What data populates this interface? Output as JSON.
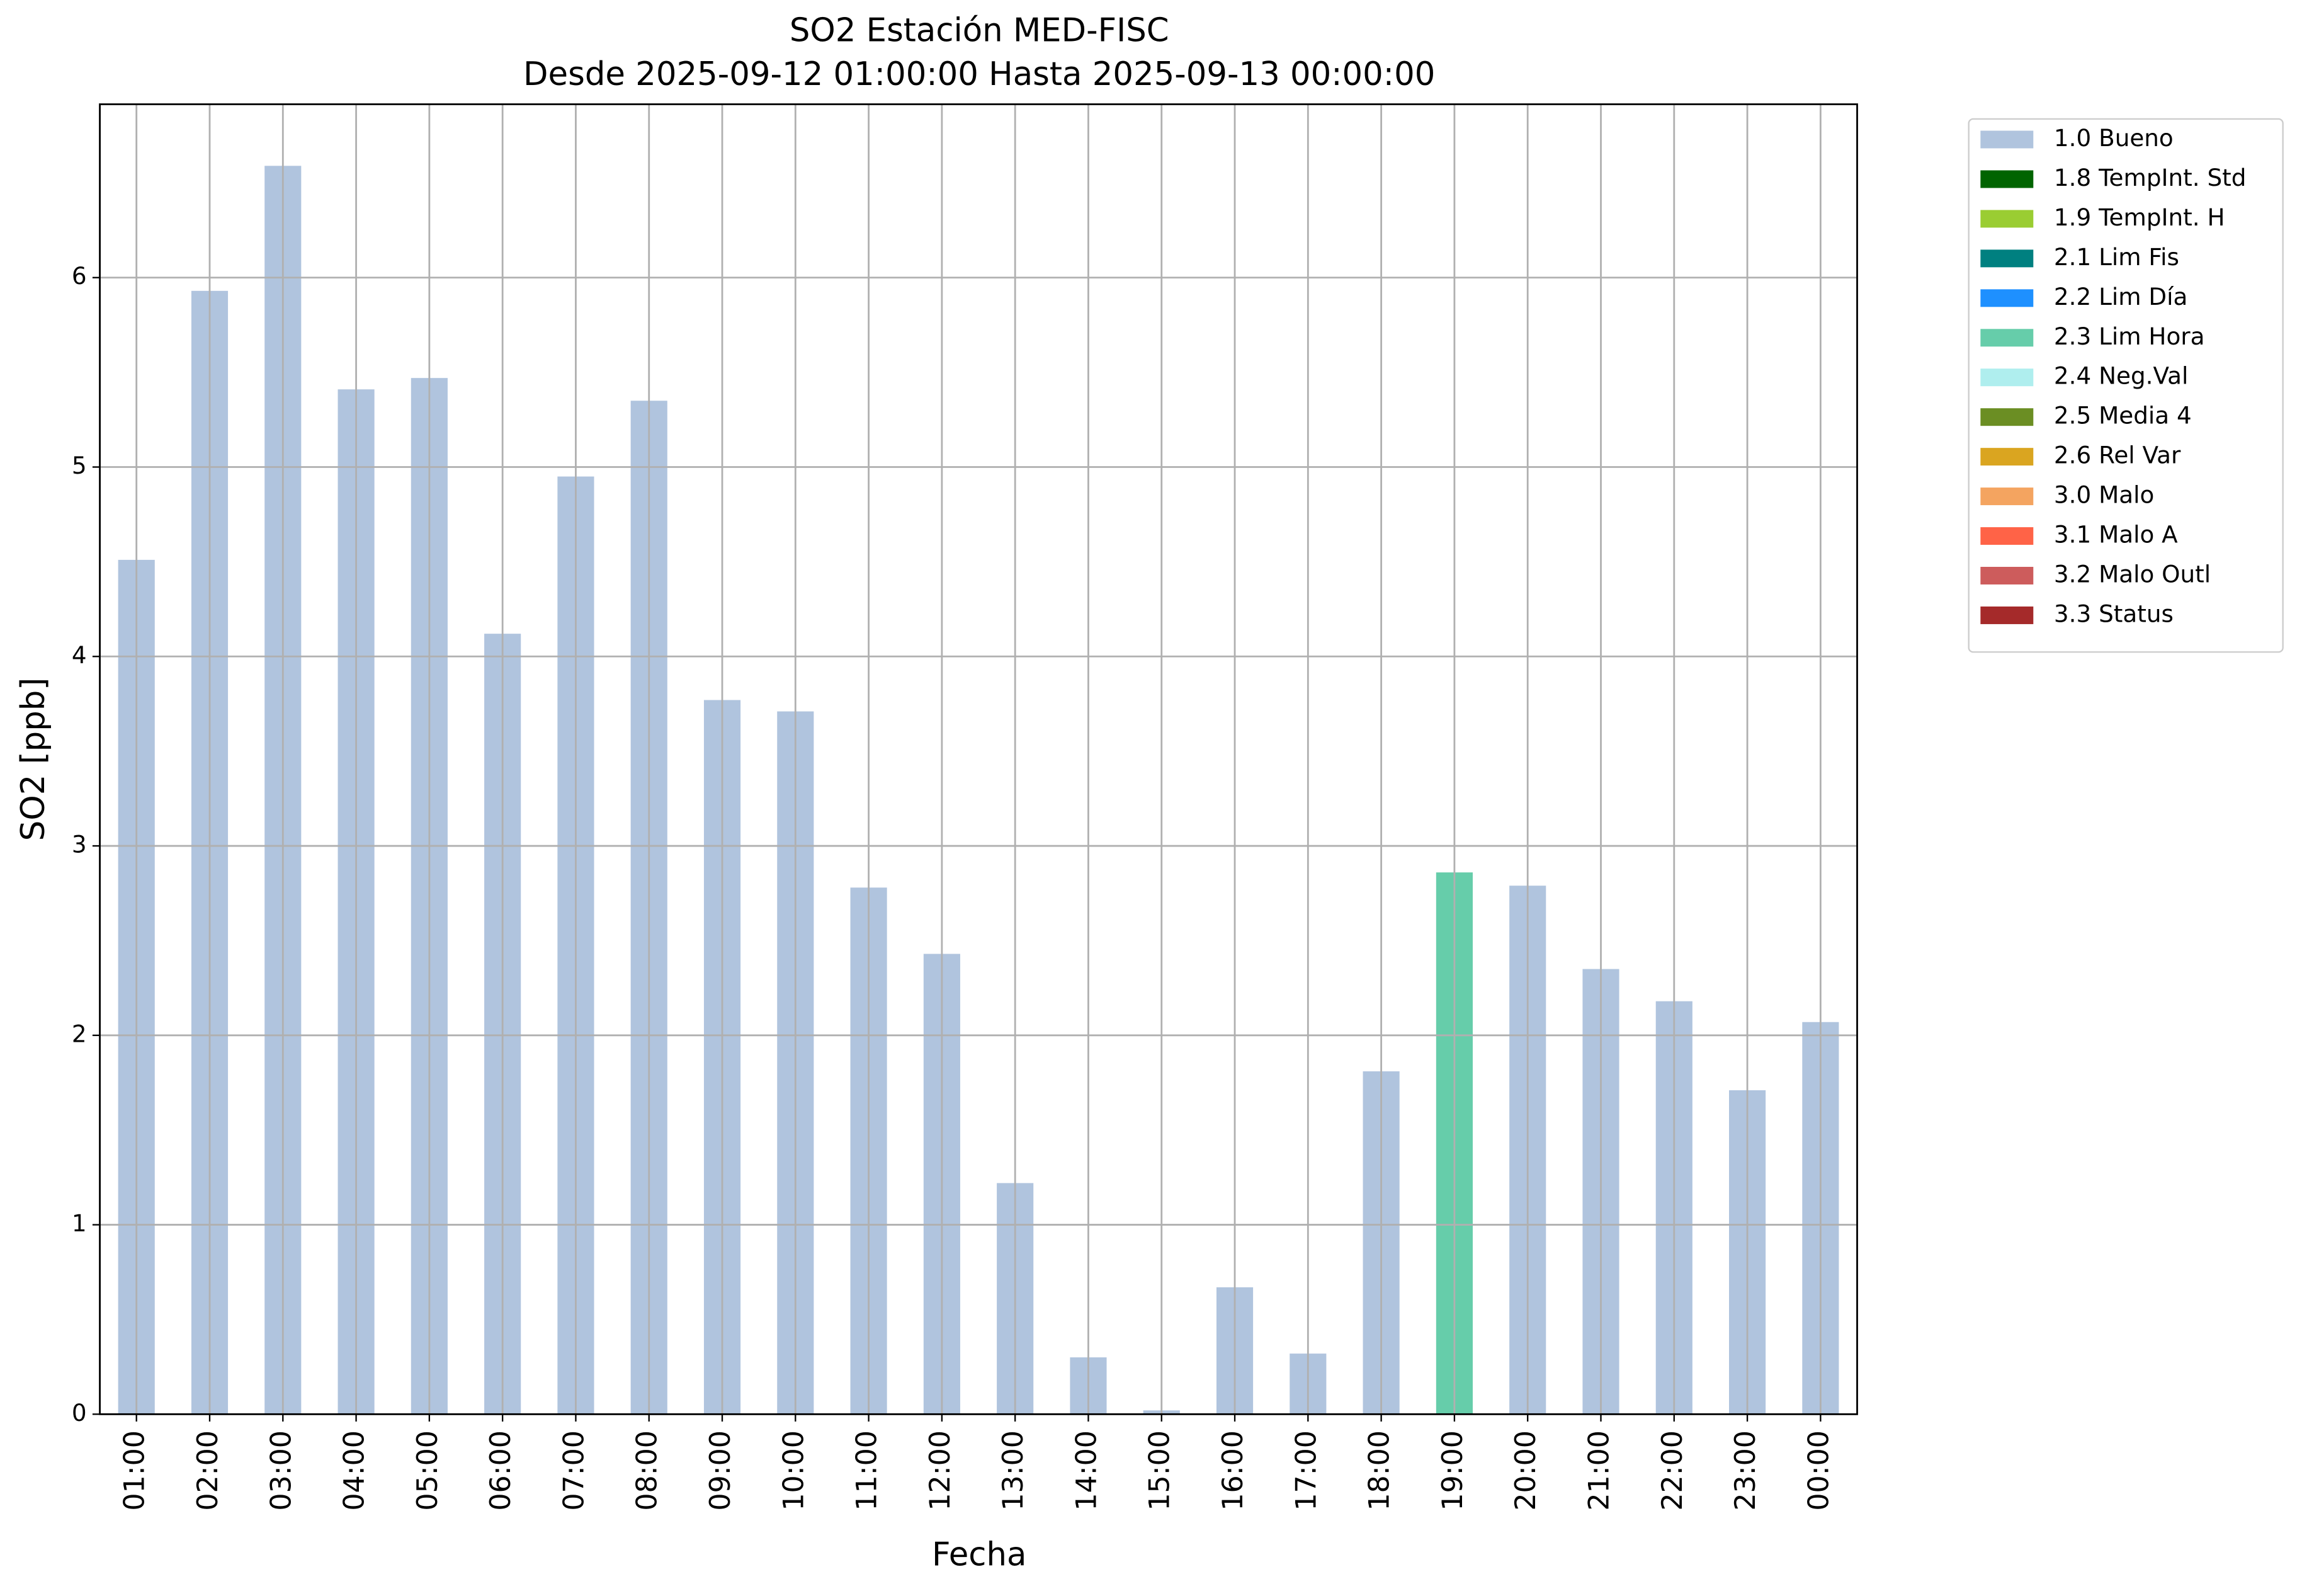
{
  "chart_data": {
    "type": "stacked_bar",
    "title": "SO2 Estación MED-FISC",
    "subtitle": "Desde 2025-09-12 01:00:00 Hasta 2025-09-13 00:00:00",
    "x_label": "Fecha",
    "y_label": "SO2 [ppb]",
    "categories": [
      "01:00",
      "02:00",
      "03:00",
      "04:00",
      "05:00",
      "06:00",
      "07:00",
      "08:00",
      "09:00",
      "10:00",
      "11:00",
      "12:00",
      "13:00",
      "14:00",
      "15:00",
      "16:00",
      "17:00",
      "18:00",
      "19:00",
      "20:00",
      "21:00",
      "22:00",
      "23:00",
      "00:00"
    ],
    "series": [
      {
        "name": "1.0 Bueno",
        "color": "#b0c4de",
        "values": [
          4.51,
          5.93,
          6.59,
          5.41,
          5.47,
          4.12,
          4.95,
          5.35,
          3.77,
          3.71,
          2.78,
          2.43,
          1.22,
          0.3,
          0.02,
          0.67,
          0.32,
          1.81,
          null,
          2.79,
          2.35,
          2.18,
          1.71,
          2.07
        ]
      },
      {
        "name": "1.8 TempInt. Std",
        "color": "#006400",
        "values": [
          null,
          null,
          null,
          null,
          null,
          null,
          null,
          null,
          null,
          null,
          null,
          null,
          null,
          null,
          null,
          null,
          null,
          null,
          null,
          null,
          null,
          null,
          null,
          null
        ]
      },
      {
        "name": "1.9 TempInt. H",
        "color": "#9acd32",
        "values": [
          null,
          null,
          null,
          null,
          null,
          null,
          null,
          null,
          null,
          null,
          null,
          null,
          null,
          null,
          null,
          null,
          null,
          null,
          null,
          null,
          null,
          null,
          null,
          null
        ]
      },
      {
        "name": "2.1 Lim Fis",
        "color": "#008080",
        "values": [
          null,
          null,
          null,
          null,
          null,
          null,
          null,
          null,
          null,
          null,
          null,
          null,
          null,
          null,
          null,
          null,
          null,
          null,
          null,
          null,
          null,
          null,
          null,
          null
        ]
      },
      {
        "name": "2.2 Lim Día",
        "color": "#1e90ff",
        "values": [
          null,
          null,
          null,
          null,
          null,
          null,
          null,
          null,
          null,
          null,
          null,
          null,
          null,
          null,
          null,
          null,
          null,
          null,
          null,
          null,
          null,
          null,
          null,
          null
        ]
      },
      {
        "name": "2.3 Lim Hora",
        "color": "#66cdaa",
        "values": [
          null,
          null,
          null,
          null,
          null,
          null,
          null,
          null,
          null,
          null,
          null,
          null,
          null,
          null,
          null,
          null,
          null,
          null,
          2.86,
          null,
          null,
          null,
          null,
          null
        ]
      },
      {
        "name": "2.4 Neg.Val",
        "color": "#afeeee",
        "values": [
          null,
          null,
          null,
          null,
          null,
          null,
          null,
          null,
          null,
          null,
          null,
          null,
          null,
          null,
          null,
          null,
          null,
          null,
          null,
          null,
          null,
          null,
          null,
          null
        ]
      },
      {
        "name": "2.5 Media 4",
        "color": "#6b8e23",
        "values": [
          null,
          null,
          null,
          null,
          null,
          null,
          null,
          null,
          null,
          null,
          null,
          null,
          null,
          null,
          null,
          null,
          null,
          null,
          null,
          null,
          null,
          null,
          null,
          null
        ]
      },
      {
        "name": "2.6 Rel Var",
        "color": "#daa520",
        "values": [
          null,
          null,
          null,
          null,
          null,
          null,
          null,
          null,
          null,
          null,
          null,
          null,
          null,
          null,
          null,
          null,
          null,
          null,
          null,
          null,
          null,
          null,
          null,
          null
        ]
      },
      {
        "name": "3.0 Malo",
        "color": "#f4a460",
        "values": [
          null,
          null,
          null,
          null,
          null,
          null,
          null,
          null,
          null,
          null,
          null,
          null,
          null,
          null,
          null,
          null,
          null,
          null,
          null,
          null,
          null,
          null,
          null,
          null
        ]
      },
      {
        "name": "3.1 Malo A",
        "color": "#ff6347",
        "values": [
          null,
          null,
          null,
          null,
          null,
          null,
          null,
          null,
          null,
          null,
          null,
          null,
          null,
          null,
          null,
          null,
          null,
          null,
          null,
          null,
          null,
          null,
          null,
          null
        ]
      },
      {
        "name": "3.2 Malo Outl",
        "color": "#cd5c5c",
        "values": [
          null,
          null,
          null,
          null,
          null,
          null,
          null,
          null,
          null,
          null,
          null,
          null,
          null,
          null,
          null,
          null,
          null,
          null,
          null,
          null,
          null,
          null,
          null,
          null
        ]
      },
      {
        "name": "3.3 Status",
        "color": "#a52a2a",
        "values": [
          null,
          null,
          null,
          null,
          null,
          null,
          null,
          null,
          null,
          null,
          null,
          null,
          null,
          null,
          null,
          null,
          null,
          null,
          null,
          null,
          null,
          null,
          null,
          null
        ]
      }
    ],
    "ylim": [
      0,
      6.915
    ],
    "yticks": [
      0,
      1,
      2,
      3,
      4,
      5,
      6
    ],
    "grid": true,
    "legend": "outside-upper-right"
  }
}
